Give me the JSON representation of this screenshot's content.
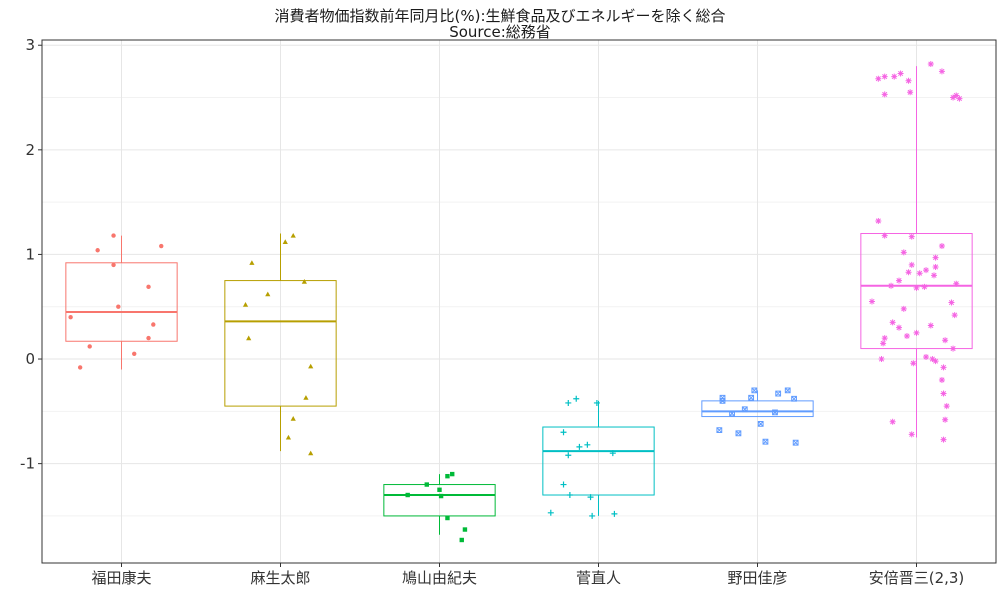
{
  "chart_data": {
    "type": "boxplot",
    "title": "消費者物価指数前年同月比(%):生鮮食品及びエネルギーを除く総合",
    "subtitle": "Source:総務省",
    "xlabel": "",
    "ylabel": "",
    "ylim": [
      -1.95,
      3.05
    ],
    "yticks": [
      3,
      2,
      1,
      0,
      -1
    ],
    "ytick_labels": [
      "3",
      "2",
      "1",
      "0",
      "-1"
    ],
    "grid": true,
    "legend": "none",
    "categories": [
      "福田康夫",
      "麻生太郎",
      "鳩山由紀夫",
      "菅直人",
      "野田佳彦",
      "安倍晋三(2,3)"
    ],
    "series": [
      {
        "color": "#F8766D",
        "marker": "circle",
        "box": {
          "min": -0.1,
          "q1": 0.17,
          "median": 0.45,
          "q3": 0.92,
          "max": 1.18
        },
        "points": [
          {
            "x": -0.05,
            "y": 1.18
          },
          {
            "x": 0.25,
            "y": 1.08
          },
          {
            "x": -0.15,
            "y": 1.04
          },
          {
            "x": -0.05,
            "y": 0.9
          },
          {
            "x": 0.17,
            "y": 0.69
          },
          {
            "x": -0.02,
            "y": 0.5
          },
          {
            "x": -0.32,
            "y": 0.4
          },
          {
            "x": 0.2,
            "y": 0.33
          },
          {
            "x": 0.17,
            "y": 0.2
          },
          {
            "x": -0.2,
            "y": 0.12
          },
          {
            "x": 0.08,
            "y": 0.05
          },
          {
            "x": -0.26,
            "y": -0.08
          }
        ]
      },
      {
        "color": "#B79F00",
        "marker": "triangle",
        "box": {
          "min": -0.88,
          "q1": -0.45,
          "median": 0.36,
          "q3": 0.75,
          "max": 1.2
        },
        "points": [
          {
            "x": 0.08,
            "y": 1.18
          },
          {
            "x": 0.03,
            "y": 1.12
          },
          {
            "x": -0.18,
            "y": 0.92
          },
          {
            "x": -0.08,
            "y": 0.62
          },
          {
            "x": 0.15,
            "y": 0.74
          },
          {
            "x": -0.22,
            "y": 0.52
          },
          {
            "x": -0.2,
            "y": 0.2
          },
          {
            "x": 0.19,
            "y": -0.07
          },
          {
            "x": 0.16,
            "y": -0.37
          },
          {
            "x": 0.08,
            "y": -0.57
          },
          {
            "x": 0.05,
            "y": -0.75
          },
          {
            "x": 0.19,
            "y": -0.9
          }
        ]
      },
      {
        "color": "#00BA38",
        "marker": "square",
        "box": {
          "min": -1.68,
          "q1": -1.5,
          "median": -1.3,
          "q3": -1.2,
          "max": -1.1
        },
        "points": [
          {
            "x": 0.08,
            "y": -1.1
          },
          {
            "x": 0.05,
            "y": -1.12
          },
          {
            "x": -0.08,
            "y": -1.2
          },
          {
            "x": 0.0,
            "y": -1.25
          },
          {
            "x": -0.2,
            "y": -1.3
          },
          {
            "x": 0.01,
            "y": -1.31
          },
          {
            "x": 0.05,
            "y": -1.52
          },
          {
            "x": 0.16,
            "y": -1.63
          },
          {
            "x": 0.14,
            "y": -1.73
          }
        ]
      },
      {
        "color": "#00BFC4",
        "marker": "plus",
        "box": {
          "min": -1.5,
          "q1": -1.3,
          "median": -0.88,
          "q3": -0.65,
          "max": -0.4
        },
        "points": [
          {
            "x": -0.14,
            "y": -0.38
          },
          {
            "x": -0.19,
            "y": -0.42
          },
          {
            "x": -0.01,
            "y": -0.42
          },
          {
            "x": -0.22,
            "y": -0.7
          },
          {
            "x": -0.07,
            "y": -0.82
          },
          {
            "x": -0.12,
            "y": -0.84
          },
          {
            "x": 0.09,
            "y": -0.9
          },
          {
            "x": -0.19,
            "y": -0.92
          },
          {
            "x": -0.22,
            "y": -1.2
          },
          {
            "x": -0.18,
            "y": -1.3
          },
          {
            "x": -0.05,
            "y": -1.32
          },
          {
            "x": -0.3,
            "y": -1.47
          },
          {
            "x": -0.04,
            "y": -1.5
          },
          {
            "x": 0.1,
            "y": -1.48
          }
        ]
      },
      {
        "color": "#619CFF",
        "marker": "square-x",
        "box": {
          "min": -0.55,
          "q1": -0.55,
          "median": -0.5,
          "q3": -0.4,
          "max": -0.3
        },
        "points": [
          {
            "x": -0.02,
            "y": -0.3
          },
          {
            "x": 0.19,
            "y": -0.3
          },
          {
            "x": 0.13,
            "y": -0.33
          },
          {
            "x": -0.22,
            "y": -0.37
          },
          {
            "x": -0.04,
            "y": -0.37
          },
          {
            "x": -0.22,
            "y": -0.4
          },
          {
            "x": 0.23,
            "y": -0.38
          },
          {
            "x": -0.08,
            "y": -0.48
          },
          {
            "x": -0.16,
            "y": -0.52
          },
          {
            "x": 0.11,
            "y": -0.51
          },
          {
            "x": 0.02,
            "y": -0.62
          },
          {
            "x": -0.24,
            "y": -0.68
          },
          {
            "x": -0.12,
            "y": -0.71
          },
          {
            "x": 0.05,
            "y": -0.79
          },
          {
            "x": 0.24,
            "y": -0.8
          }
        ]
      },
      {
        "color": "#F564E3",
        "marker": "asterisk",
        "box": {
          "min": -0.75,
          "q1": 0.1,
          "median": 0.7,
          "q3": 1.2,
          "max": 2.8
        },
        "points": [
          {
            "x": 0.09,
            "y": 2.82
          },
          {
            "x": 0.16,
            "y": 2.75
          },
          {
            "x": -0.1,
            "y": 2.73
          },
          {
            "x": -0.2,
            "y": 2.7
          },
          {
            "x": -0.24,
            "y": 2.68
          },
          {
            "x": -0.14,
            "y": 2.7
          },
          {
            "x": -0.05,
            "y": 2.66
          },
          {
            "x": -0.2,
            "y": 2.53
          },
          {
            "x": -0.04,
            "y": 2.55
          },
          {
            "x": 0.23,
            "y": 2.5
          },
          {
            "x": 0.25,
            "y": 2.52
          },
          {
            "x": 0.27,
            "y": 2.49
          },
          {
            "x": -0.24,
            "y": 1.32
          },
          {
            "x": -0.2,
            "y": 1.18
          },
          {
            "x": -0.03,
            "y": 1.17
          },
          {
            "x": 0.16,
            "y": 1.08
          },
          {
            "x": -0.08,
            "y": 1.02
          },
          {
            "x": 0.12,
            "y": 0.97
          },
          {
            "x": -0.03,
            "y": 0.9
          },
          {
            "x": 0.12,
            "y": 0.88
          },
          {
            "x": -0.05,
            "y": 0.83
          },
          {
            "x": 0.06,
            "y": 0.85
          },
          {
            "x": 0.11,
            "y": 0.8
          },
          {
            "x": 0.02,
            "y": 0.82
          },
          {
            "x": -0.11,
            "y": 0.75
          },
          {
            "x": -0.16,
            "y": 0.7
          },
          {
            "x": 0.0,
            "y": 0.68
          },
          {
            "x": 0.05,
            "y": 0.69
          },
          {
            "x": 0.25,
            "y": 0.72
          },
          {
            "x": -0.28,
            "y": 0.55
          },
          {
            "x": 0.22,
            "y": 0.54
          },
          {
            "x": -0.08,
            "y": 0.48
          },
          {
            "x": 0.24,
            "y": 0.42
          },
          {
            "x": -0.15,
            "y": 0.35
          },
          {
            "x": -0.11,
            "y": 0.3
          },
          {
            "x": 0.09,
            "y": 0.32
          },
          {
            "x": -0.2,
            "y": 0.2
          },
          {
            "x": -0.06,
            "y": 0.22
          },
          {
            "x": -0.21,
            "y": 0.15
          },
          {
            "x": 0.0,
            "y": 0.25
          },
          {
            "x": 0.18,
            "y": 0.18
          },
          {
            "x": 0.23,
            "y": 0.1
          },
          {
            "x": -0.22,
            "y": 0.0
          },
          {
            "x": 0.06,
            "y": 0.02
          },
          {
            "x": 0.1,
            "y": 0.0
          },
          {
            "x": 0.12,
            "y": -0.02
          },
          {
            "x": -0.02,
            "y": -0.04
          },
          {
            "x": 0.17,
            "y": -0.08
          },
          {
            "x": 0.16,
            "y": -0.2
          },
          {
            "x": 0.17,
            "y": -0.33
          },
          {
            "x": 0.19,
            "y": -0.45
          },
          {
            "x": -0.15,
            "y": -0.6
          },
          {
            "x": 0.18,
            "y": -0.58
          },
          {
            "x": -0.03,
            "y": -0.72
          },
          {
            "x": 0.17,
            "y": -0.77
          }
        ]
      }
    ]
  }
}
